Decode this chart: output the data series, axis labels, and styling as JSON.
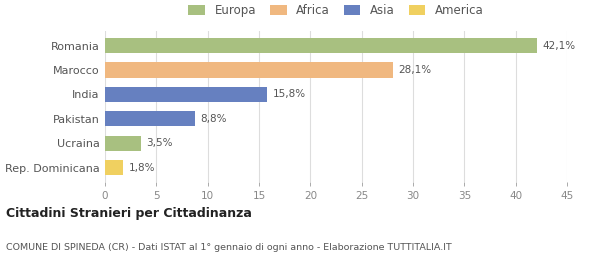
{
  "categories": [
    "Romania",
    "Marocco",
    "India",
    "Pakistan",
    "Ucraina",
    "Rep. Dominicana"
  ],
  "values": [
    42.1,
    28.1,
    15.8,
    8.8,
    3.5,
    1.8
  ],
  "labels": [
    "42,1%",
    "28,1%",
    "15,8%",
    "8,8%",
    "3,5%",
    "1,8%"
  ],
  "colors": [
    "#a8c080",
    "#f0b880",
    "#6680c0",
    "#6680c0",
    "#a8c080",
    "#f0d060"
  ],
  "legend": [
    {
      "label": "Europa",
      "color": "#a8c080"
    },
    {
      "label": "Africa",
      "color": "#f0b880"
    },
    {
      "label": "Asia",
      "color": "#6680c0"
    },
    {
      "label": "America",
      "color": "#f0d060"
    }
  ],
  "xlim": [
    0,
    45
  ],
  "xticks": [
    0,
    5,
    10,
    15,
    20,
    25,
    30,
    35,
    40,
    45
  ],
  "title": "Cittadini Stranieri per Cittadinanza",
  "subtitle": "COMUNE DI SPINEDA (CR) - Dati ISTAT al 1° gennaio di ogni anno - Elaborazione TUTTITALIA.IT",
  "background_color": "#ffffff",
  "grid_color": "#dddddd",
  "bar_height": 0.62
}
